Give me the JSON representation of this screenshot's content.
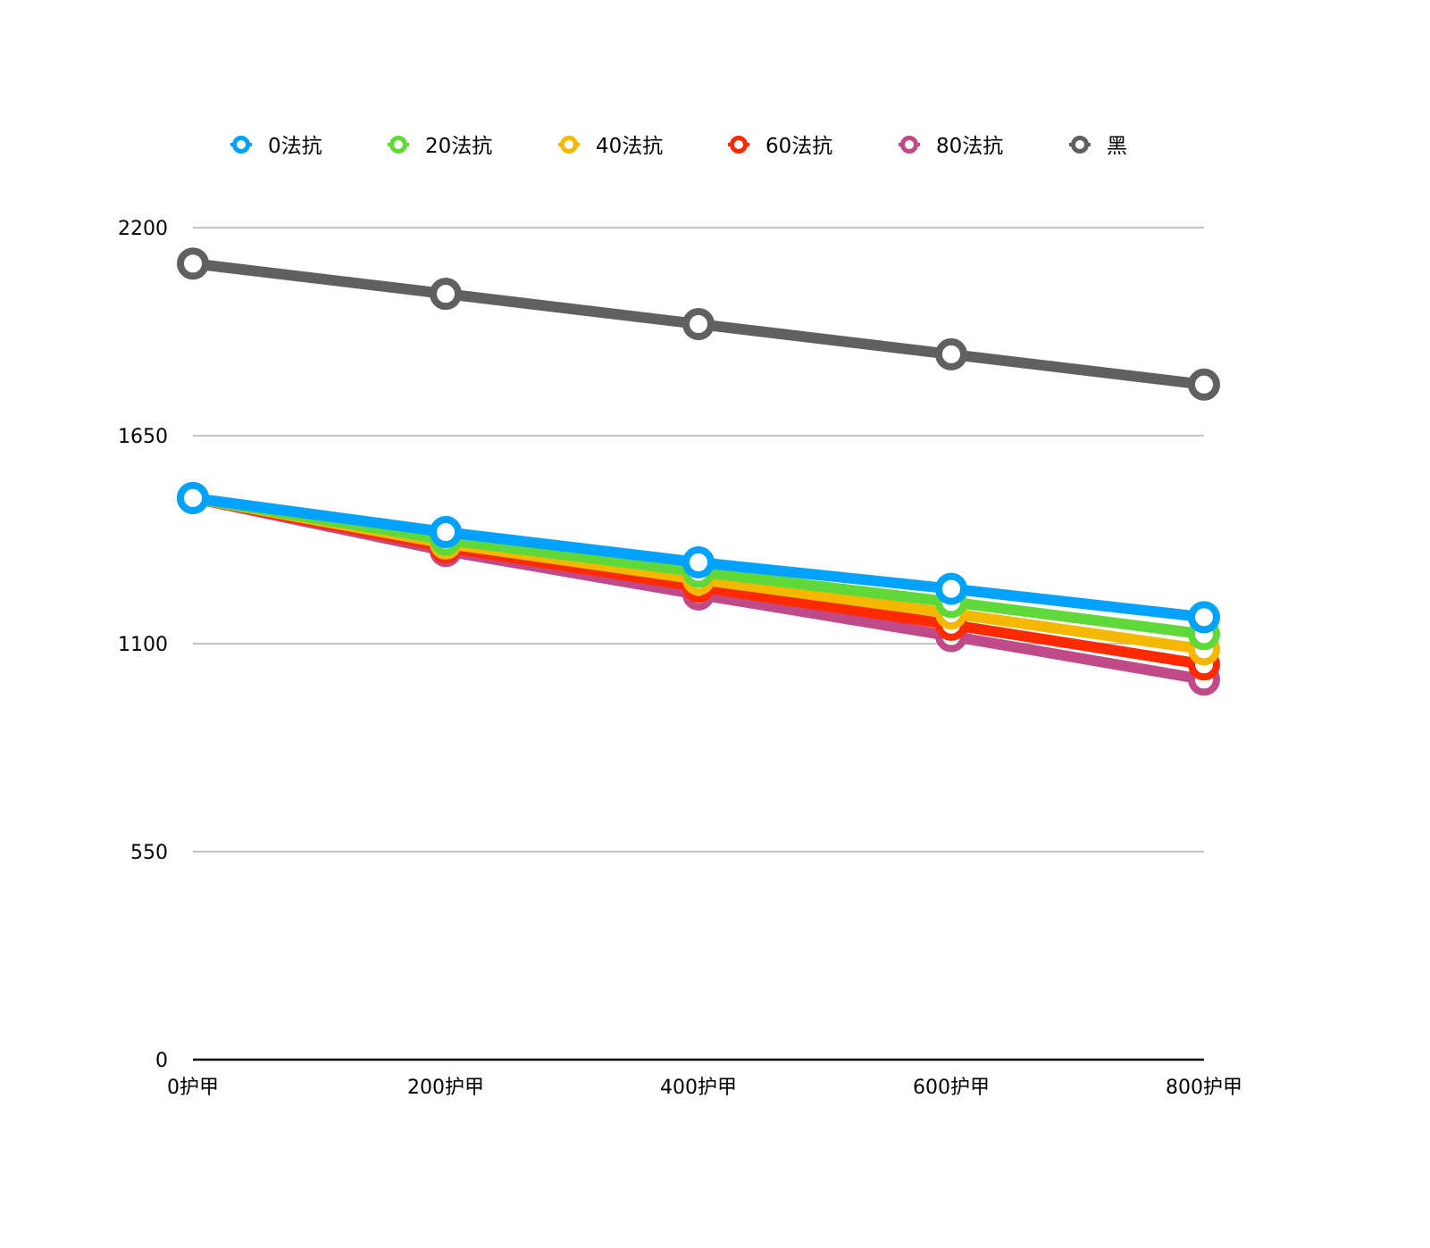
{
  "chart_data": {
    "type": "line",
    "title": "",
    "xlabel": "",
    "ylabel": "",
    "categories": [
      "0护甲",
      "200护甲",
      "400护甲",
      "600护甲",
      "800护甲"
    ],
    "yticks": [
      "0",
      "550",
      "1100",
      "1650",
      "2200"
    ],
    "ylim": [
      0,
      2200
    ],
    "grid": true,
    "legend_position": "top",
    "series": [
      {
        "name": "黑",
        "color": "#606060",
        "values": [
          2105,
          2025,
          1945,
          1865,
          1785
        ]
      },
      {
        "name": "80法抗",
        "color": "#c04a88",
        "values": [
          1485,
          1345,
          1230,
          1120,
          1005
        ]
      },
      {
        "name": "60法抗",
        "color": "#ff2a00",
        "values": [
          1485,
          1355,
          1250,
          1150,
          1045
        ]
      },
      {
        "name": "40法抗",
        "color": "#f5b800",
        "values": [
          1485,
          1365,
          1270,
          1180,
          1085
        ]
      },
      {
        "name": "20法抗",
        "color": "#5fd83a",
        "values": [
          1485,
          1375,
          1290,
          1210,
          1125
        ]
      },
      {
        "name": "0法抗",
        "color": "#00a2ff",
        "values": [
          1485,
          1395,
          1315,
          1245,
          1170
        ]
      }
    ],
    "legend_order": [
      "0法抗",
      "20法抗",
      "40法抗",
      "60法抗",
      "80法抗",
      "黑"
    ]
  }
}
